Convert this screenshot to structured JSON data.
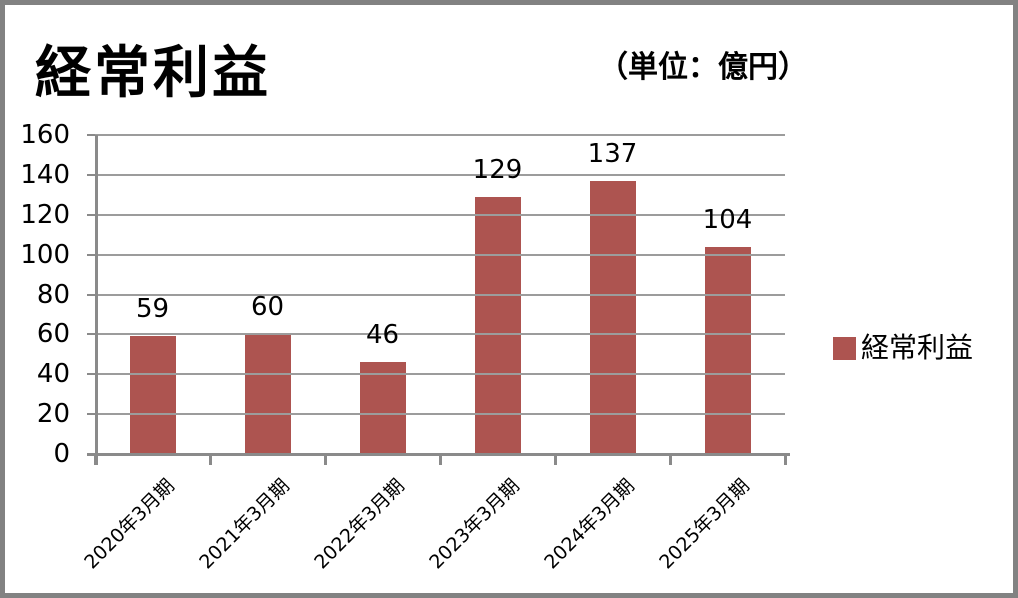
{
  "header": {
    "title": "経常利益",
    "unit": "（単位：億円）"
  },
  "legend": {
    "label": "経常利益",
    "swatch_color": "#AD5450"
  },
  "chart_data": {
    "type": "bar",
    "title": "経常利益",
    "unit_label": "（単位：億円）",
    "categories": [
      "2020年3月期",
      "2021年3月期",
      "2022年3月期",
      "2023年3月期",
      "2024年3月期",
      "2025年3月期"
    ],
    "series": [
      {
        "name": "経常利益",
        "values": [
          59,
          60,
          46,
          129,
          137,
          104
        ],
        "color": "#AD5450"
      }
    ],
    "data_labels": [
      59,
      60,
      46,
      129,
      137,
      104
    ],
    "ylim": [
      0,
      160
    ],
    "ytick_step": 20,
    "ytick_labels": [
      "0",
      "20",
      "40",
      "60",
      "80",
      "100",
      "120",
      "140",
      "160"
    ],
    "grid": true,
    "gridlines_above_bars": true,
    "legend_position": "right",
    "gridline_color": "#9c9c9c",
    "axis_color": "#8a8a8a",
    "frame_color": "#828282"
  }
}
